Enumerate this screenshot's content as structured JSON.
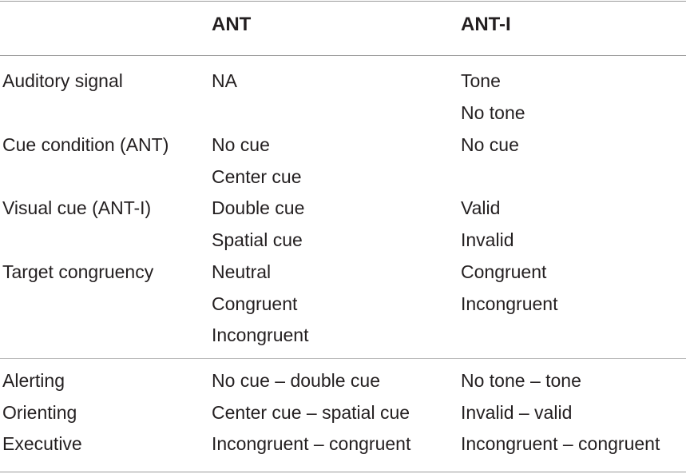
{
  "header": {
    "col1": "",
    "col2": "ANT",
    "col3": "ANT-I"
  },
  "rows": [
    {
      "label": "Auditory signal",
      "ant": [
        "NA"
      ],
      "anti": [
        "Tone",
        "No tone"
      ]
    },
    {
      "label": "Cue condition (ANT)",
      "ant": [
        "No cue",
        "Center cue"
      ],
      "anti": [
        "No cue"
      ]
    },
    {
      "label": "Visual cue (ANT-I)",
      "ant": [
        "Double cue",
        "Spatial cue"
      ],
      "anti": [
        "Valid",
        "Invalid"
      ]
    },
    {
      "label": "Target congruency",
      "ant": [
        "Neutral",
        "Congruent",
        "Incongruent"
      ],
      "anti": [
        "Congruent",
        "Incongruent"
      ]
    }
  ],
  "networks": [
    {
      "label": "Alerting",
      "ant": "No cue – double cue",
      "anti": "No tone – tone"
    },
    {
      "label": "Orienting",
      "ant": "Center cue – spatial cue",
      "anti": "Invalid – valid"
    },
    {
      "label": "Executive",
      "ant": "Incongruent – congruent",
      "anti": "Incongruent – congruent"
    }
  ]
}
